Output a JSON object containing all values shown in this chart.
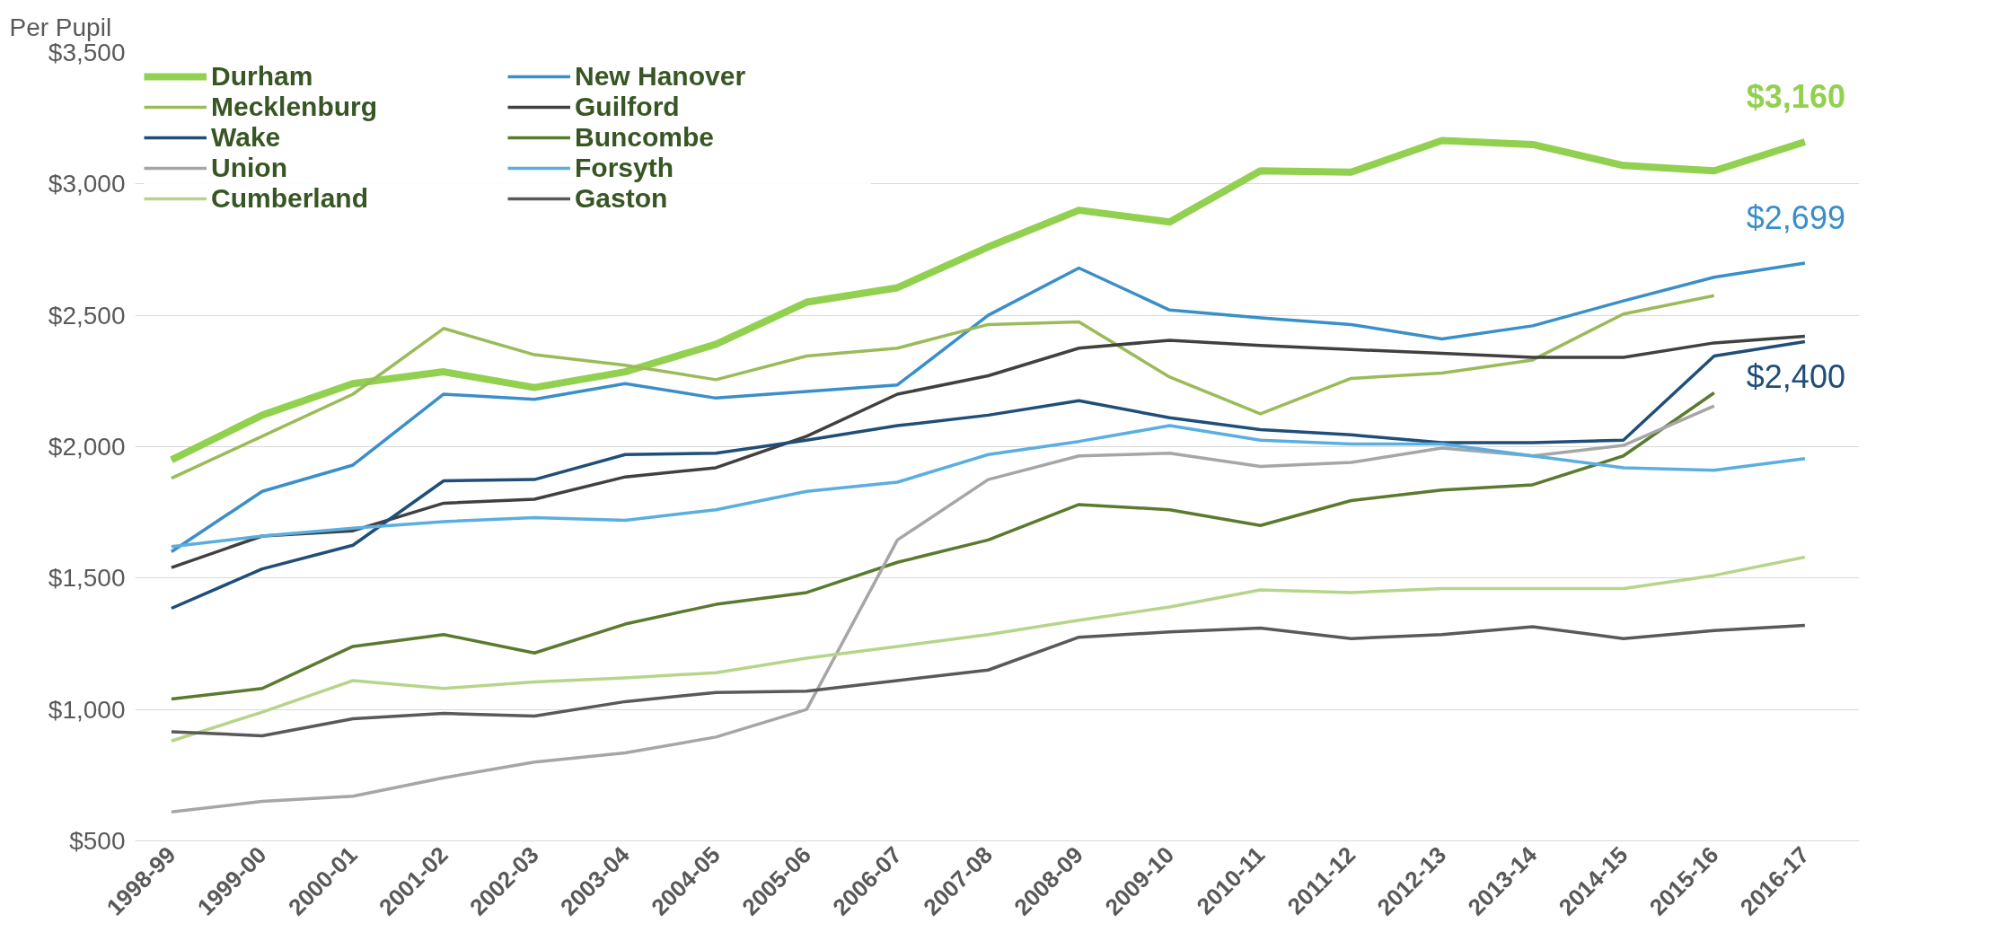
{
  "chart_data": {
    "type": "line",
    "ylabel": "Per Pupil",
    "categories": [
      "1998-99",
      "1999-00",
      "2000-01",
      "2001-02",
      "2002-03",
      "2003-04",
      "2004-05",
      "2005-06",
      "2006-07",
      "2007-08",
      "2008-09",
      "2009-10",
      "2010-11",
      "2011-12",
      "2012-13",
      "2013-14",
      "2014-15",
      "2015-16",
      "2016-17"
    ],
    "series": [
      {
        "name": "Durham",
        "color": "#92d050",
        "values": [
          1950,
          2120,
          2240,
          2285,
          2225,
          2285,
          2390,
          2550,
          2605,
          2760,
          2900,
          2855,
          3050,
          3045,
          3165,
          3150,
          3070,
          3050,
          3160
        ],
        "value_labels": [
          null,
          null,
          null,
          null,
          null,
          null,
          null,
          null,
          null,
          null,
          null,
          null,
          null,
          null,
          null,
          null,
          null,
          null,
          "$3,160"
        ]
      },
      {
        "name": "New Hanover",
        "color": "#3a8fc8",
        "values": [
          1600,
          1830,
          1930,
          2200,
          2180,
          2240,
          2185,
          2210,
          2235,
          2500,
          2680,
          2520,
          2490,
          2465,
          2410,
          2460,
          2555,
          2645,
          2699
        ],
        "value_labels": [
          null,
          null,
          null,
          null,
          null,
          null,
          null,
          null,
          null,
          null,
          null,
          null,
          null,
          null,
          null,
          null,
          null,
          null,
          "$2,699"
        ]
      },
      {
        "name": "Mecklenburg",
        "color": "#9bbb59",
        "values": [
          1880,
          2040,
          2200,
          2450,
          2350,
          2310,
          2255,
          2345,
          2375,
          2465,
          2475,
          2265,
          2125,
          2260,
          2280,
          2330,
          2505,
          2575,
          null
        ]
      },
      {
        "name": "Guilford",
        "color": "#404040",
        "values": [
          1540,
          1660,
          1680,
          1785,
          1800,
          1885,
          1920,
          2040,
          2200,
          2270,
          2375,
          2405,
          2385,
          2370,
          2355,
          2340,
          2340,
          2395,
          2420
        ]
      },
      {
        "name": "Wake",
        "color": "#1f4e79",
        "values": [
          1385,
          1535,
          1625,
          1870,
          1875,
          1970,
          1975,
          2025,
          2080,
          2120,
          2175,
          2110,
          2065,
          2045,
          2015,
          2015,
          2025,
          2345,
          2400
        ],
        "value_labels": [
          null,
          null,
          null,
          null,
          null,
          null,
          null,
          null,
          null,
          null,
          null,
          null,
          null,
          null,
          null,
          null,
          null,
          null,
          "$2,400"
        ]
      },
      {
        "name": "Buncombe",
        "color": "#5a7a2e",
        "values": [
          1040,
          1080,
          1240,
          1285,
          1215,
          1325,
          1400,
          1445,
          1560,
          1645,
          1780,
          1760,
          1700,
          1795,
          1835,
          1855,
          1965,
          2205,
          null
        ]
      },
      {
        "name": "Union",
        "color": "#a6a6a6",
        "values": [
          610,
          650,
          670,
          740,
          800,
          835,
          895,
          1000,
          1645,
          1875,
          1965,
          1975,
          1925,
          1940,
          1995,
          1965,
          2005,
          2155,
          null
        ]
      },
      {
        "name": "Forsyth",
        "color": "#5aaee0",
        "values": [
          1620,
          1660,
          1690,
          1715,
          1730,
          1720,
          1760,
          1830,
          1865,
          1970,
          2020,
          2080,
          2025,
          2010,
          2010,
          1965,
          1920,
          1910,
          1955
        ]
      },
      {
        "name": "Cumberland",
        "color": "#b5d68a",
        "values": [
          880,
          990,
          1110,
          1080,
          1105,
          1120,
          1140,
          1195,
          1240,
          1285,
          1340,
          1390,
          1455,
          1445,
          1460,
          1460,
          1460,
          1510,
          1580
        ]
      },
      {
        "name": "Gaston",
        "color": "#595959",
        "values": [
          915,
          900,
          965,
          985,
          975,
          1030,
          1065,
          1070,
          1110,
          1150,
          1275,
          1295,
          1310,
          1270,
          1285,
          1315,
          1270,
          1300,
          1320
        ]
      }
    ],
    "ylim": [
      500,
      3500
    ],
    "yticks": [
      {
        "value": 500,
        "label": "$500"
      },
      {
        "value": 1000,
        "label": "$1,000"
      },
      {
        "value": 1500,
        "label": "$1,500"
      },
      {
        "value": 2000,
        "label": "$2,000"
      },
      {
        "value": 2500,
        "label": "$2,500"
      },
      {
        "value": 3000,
        "label": "$3,000"
      },
      {
        "value": 3500,
        "label": "$3,500"
      }
    ],
    "grid": "y",
    "legend": "top left",
    "marker": "none",
    "line_style": "solid"
  }
}
